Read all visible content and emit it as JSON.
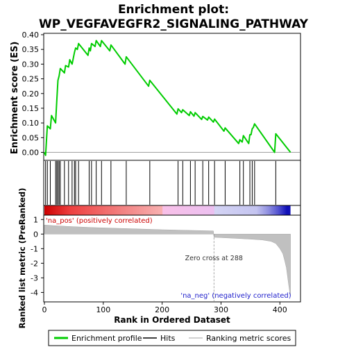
{
  "chart_data": {
    "type": "line",
    "title_line1": "Enrichment plot:",
    "title_line2": "WP_VEGFAVEGFR2_SIGNALING_PATHWAY",
    "es_panel": {
      "ylabel": "Enrichment score (ES)",
      "ylim": [
        -0.02,
        0.4
      ],
      "yticks": [
        "0.00",
        "0.05",
        "0.10",
        "0.15",
        "0.20",
        "0.25",
        "0.30",
        "0.35",
        "0.40"
      ],
      "line_color": "#00cc00",
      "points": [
        [
          0,
          0
        ],
        [
          2,
          -0.01
        ],
        [
          5,
          0.09
        ],
        [
          10,
          0.08
        ],
        [
          12,
          0.125
        ],
        [
          19,
          0.1
        ],
        [
          21,
          0.175
        ],
        [
          23,
          0.245
        ],
        [
          25,
          0.26
        ],
        [
          27,
          0.285
        ],
        [
          34,
          0.27
        ],
        [
          36,
          0.295
        ],
        [
          41,
          0.29
        ],
        [
          43,
          0.315
        ],
        [
          47,
          0.3
        ],
        [
          51,
          0.34
        ],
        [
          53,
          0.355
        ],
        [
          56,
          0.35
        ],
        [
          58,
          0.37
        ],
        [
          74,
          0.33
        ],
        [
          76,
          0.355
        ],
        [
          78,
          0.345
        ],
        [
          80,
          0.37
        ],
        [
          86,
          0.36
        ],
        [
          88,
          0.38
        ],
        [
          95,
          0.36
        ],
        [
          97,
          0.38
        ],
        [
          111,
          0.345
        ],
        [
          113,
          0.365
        ],
        [
          137,
          0.3
        ],
        [
          139,
          0.325
        ],
        [
          177,
          0.225
        ],
        [
          179,
          0.245
        ],
        [
          225,
          0.13
        ],
        [
          227,
          0.148
        ],
        [
          233,
          0.135
        ],
        [
          235,
          0.145
        ],
        [
          246,
          0.125
        ],
        [
          248,
          0.138
        ],
        [
          254,
          0.123
        ],
        [
          256,
          0.135
        ],
        [
          267,
          0.112
        ],
        [
          269,
          0.122
        ],
        [
          277,
          0.11
        ],
        [
          279,
          0.12
        ],
        [
          287,
          0.103
        ],
        [
          289,
          0.113
        ],
        [
          305,
          0.072
        ],
        [
          307,
          0.083
        ],
        [
          330,
          0.03
        ],
        [
          332,
          0.043
        ],
        [
          336,
          0.035
        ],
        [
          338,
          0.057
        ],
        [
          347,
          0.03
        ],
        [
          349,
          0.06
        ],
        [
          351,
          0.06
        ],
        [
          353,
          0.08
        ],
        [
          355,
          0.085
        ],
        [
          357,
          0.097
        ],
        [
          391,
          0.0
        ],
        [
          393,
          0.063
        ],
        [
          418,
          0.0
        ]
      ]
    },
    "hits_panel": {
      "line_color": "#000000",
      "hit_ranks": [
        2,
        5,
        10,
        19,
        21,
        23,
        25,
        27,
        34,
        41,
        47,
        51,
        53,
        58,
        76,
        80,
        88,
        97,
        113,
        139,
        179,
        227,
        235,
        248,
        256,
        269,
        279,
        289,
        307,
        332,
        338,
        349,
        353,
        357,
        393
      ]
    },
    "heat_bar": {
      "stops": [
        {
          "rank": 0,
          "color": "#cc0000"
        },
        {
          "rank": 45,
          "color": "#ee4040"
        },
        {
          "rank": 130,
          "color": "#f28080"
        },
        {
          "rank": 200,
          "color": "#f8b0b0"
        },
        {
          "rank": 201,
          "color": "#f8c0e8"
        },
        {
          "rank": 288,
          "color": "#ecc0f0"
        },
        {
          "rank": 289,
          "color": "#d4d4f4"
        },
        {
          "rank": 360,
          "color": "#c4c4f0"
        },
        {
          "rank": 380,
          "color": "#9090e0"
        },
        {
          "rank": 398,
          "color": "#5050d0"
        },
        {
          "rank": 412,
          "color": "#1010b8"
        },
        {
          "rank": 418,
          "color": "#1010b8"
        }
      ]
    },
    "metric_panel": {
      "ylabel": "Ranked list metric (PreRanked)",
      "ylim": [
        -4.6,
        1.25
      ],
      "yticks": [
        "1",
        "0",
        "-1",
        "-2",
        "-3",
        "-4"
      ],
      "fill_color": "#c0c0c0",
      "points": [
        [
          0,
          0.62
        ],
        [
          15,
          0.58
        ],
        [
          40,
          0.52
        ],
        [
          80,
          0.45
        ],
        [
          120,
          0.4
        ],
        [
          160,
          0.35
        ],
        [
          200,
          0.3
        ],
        [
          240,
          0.26
        ],
        [
          287,
          0.22
        ],
        [
          288,
          -0.22
        ],
        [
          320,
          -0.28
        ],
        [
          350,
          -0.35
        ],
        [
          370,
          -0.4
        ],
        [
          385,
          -0.5
        ],
        [
          393,
          -0.65
        ],
        [
          400,
          -1.0
        ],
        [
          405,
          -1.35
        ],
        [
          408,
          -1.8
        ],
        [
          411,
          -2.3
        ],
        [
          413,
          -2.9
        ],
        [
          415,
          -3.5
        ],
        [
          417,
          -4.05
        ],
        [
          418,
          -4.2
        ]
      ],
      "zero_cross_label": "Zero cross at 288",
      "zero_cross_rank": 288,
      "pos_label": "'na_pos' (positively correlated)",
      "neg_label": "'na_neg' (negatively correlated)"
    },
    "xlabel": "Rank in Ordered Dataset",
    "xlim": [
      0,
      435
    ],
    "xticks": [
      0,
      100,
      200,
      300,
      400
    ],
    "legend": {
      "entries": [
        {
          "label": "Enrichment profile",
          "color": "#00cc00"
        },
        {
          "label": "Hits",
          "color": "#000000"
        },
        {
          "label": "Ranking metric scores",
          "color": "#c0c0c0"
        }
      ]
    }
  }
}
